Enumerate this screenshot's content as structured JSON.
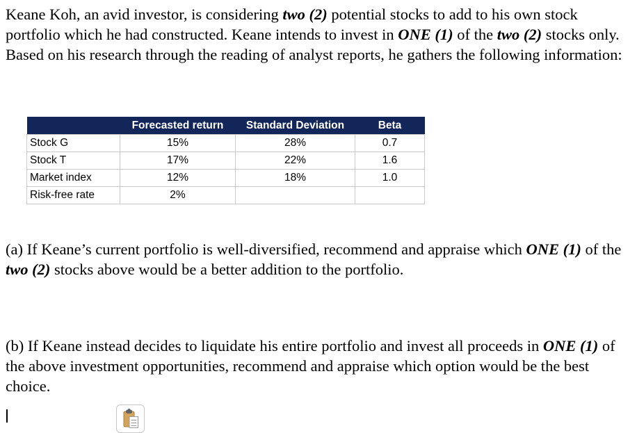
{
  "intro": {
    "segments": [
      {
        "t": "Keane Koh, an avid investor, is considering "
      },
      {
        "t": "two (2)",
        "bi": true
      },
      {
        "t": " potential stocks to add to his own stock portfolio which he had constructed. Keane intends to invest in "
      },
      {
        "t": "ONE (1)",
        "bi": true
      },
      {
        "t": " of the "
      },
      {
        "t": "two (2)",
        "bi": true
      },
      {
        "t": " stocks only. Based on his research through the reading of analyst reports, he gathers the following information:"
      }
    ]
  },
  "table": {
    "header_bg": "#12265A",
    "header_text_color": "#FFFFFF",
    "border_color": "#C9C9C9",
    "columns": [
      "",
      "Forecasted return",
      "Standard Deviation",
      "Beta"
    ],
    "rows": [
      [
        "Stock G",
        "15%",
        "28%",
        "0.7"
      ],
      [
        "Stock T",
        "17%",
        "22%",
        "1.6"
      ],
      [
        "Market index",
        "12%",
        "18%",
        "1.0"
      ],
      [
        "Risk-free rate",
        "2%",
        "",
        ""
      ]
    ]
  },
  "question_a": {
    "segments": [
      {
        "t": "(a) If Keane’s current portfolio is well-diversified, recommend and appraise which "
      },
      {
        "t": "ONE (1)",
        "bi": true
      },
      {
        "t": " of the "
      },
      {
        "t": "two (2)",
        "bi": true
      },
      {
        "t": " stocks above would be a better addition to the portfolio."
      }
    ]
  },
  "question_b": {
    "segments": [
      {
        "t": "(b) If Keane instead decides to liquidate his entire portfolio and invest all proceeds in "
      },
      {
        "t": "ONE (1)",
        "bi": true
      },
      {
        "t": " of the above investment opportunities, recommend and appraise which option would be the best choice."
      }
    ]
  },
  "paste_button": {
    "icon": "clipboard-paste-icon",
    "clipboard_color": "#D5A45C",
    "clip_color": "#5F6368"
  }
}
